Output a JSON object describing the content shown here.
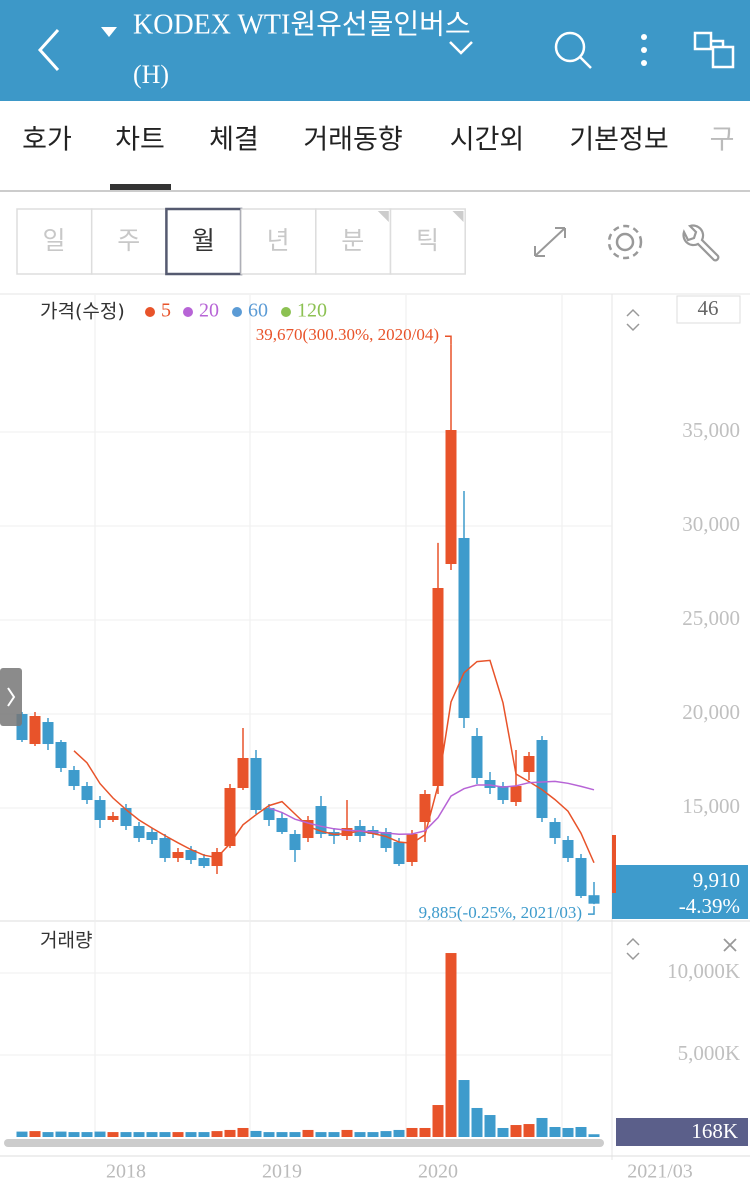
{
  "header": {
    "title": "KODEX WTI원유선물인버스",
    "subtitle": "(H)"
  },
  "tabs": [
    "호가",
    "차트",
    "체결",
    "거래동향",
    "시간외",
    "기본정보",
    "구"
  ],
  "periods": [
    "일",
    "주",
    "월",
    "년",
    "분",
    "틱"
  ],
  "chart_data": [
    {
      "type": "candlestick",
      "label": "가격(수정)",
      "moving_averages": [
        {
          "name": "5",
          "color": "#e8532a"
        },
        {
          "name": "20",
          "color": "#b764d6"
        },
        {
          "name": "60",
          "color": "#5b9bd5"
        },
        {
          "name": "120",
          "color": "#8cc152"
        }
      ],
      "up_color": "#e8532a",
      "down_color": "#3e9bcc",
      "open": [
        20000,
        18404,
        19574,
        18511,
        17021,
        16170,
        15425,
        14362,
        15000,
        14043,
        13723,
        13404,
        12340,
        12766,
        12340,
        11915,
        12979,
        16064,
        17660,
        15000,
        14468,
        13617,
        13404,
        15106,
        13723,
        13511,
        14043,
        13830,
        13723,
        13191,
        12128,
        14255,
        16170,
        27979,
        29362,
        18830,
        16489,
        16170,
        15319,
        16915,
        18617,
        14255,
        13298,
        12340,
        10362
      ],
      "high": [
        20106,
        20106,
        19787,
        18617,
        17234,
        16383,
        15638,
        14787,
        15213,
        14255,
        13936,
        13617,
        12872,
        12979,
        12553,
        12872,
        16277,
        19255,
        18085,
        15213,
        14787,
        13830,
        14574,
        15638,
        13936,
        15425,
        14362,
        14043,
        13936,
        13404,
        13830,
        15957,
        29100,
        39670,
        31862,
        19255,
        16915,
        16383,
        18085,
        17979,
        18830,
        14468,
        13511,
        12553,
        11064
      ],
      "low": [
        18511,
        18298,
        18085,
        16915,
        15957,
        15213,
        13936,
        14255,
        13830,
        13191,
        13085,
        12128,
        12128,
        12021,
        11809,
        11489,
        12872,
        15957,
        14681,
        14043,
        13617,
        12128,
        13191,
        13404,
        13085,
        13298,
        13191,
        13404,
        12660,
        11915,
        11915,
        13191,
        15745,
        27660,
        19255,
        16277,
        15745,
        15213,
        15106,
        16489,
        14255,
        13085,
        12128,
        10213,
        9885
      ],
      "close": [
        18617,
        19894,
        18404,
        17128,
        16170,
        15425,
        14362,
        14574,
        14043,
        13404,
        13298,
        12340,
        12660,
        12234,
        11915,
        12660,
        16064,
        17660,
        14894,
        14362,
        13723,
        12766,
        14362,
        13617,
        13511,
        13936,
        13511,
        13617,
        12872,
        12021,
        13617,
        15745,
        26702,
        35106,
        19787,
        16596,
        16064,
        15425,
        16170,
        17766,
        14468,
        13404,
        12340,
        10319,
        9910
      ],
      "ylim": [
        9043,
        42287
      ],
      "yticks": [
        {
          "value": 15000,
          "label": "15,000"
        },
        {
          "value": 20000,
          "label": "20,000"
        },
        {
          "value": 25000,
          "label": "25,000"
        },
        {
          "value": 30000,
          "label": "30,000"
        },
        {
          "value": 35000,
          "label": "35,000"
        }
      ],
      "annotations": [
        "39,670(300.30%, 2020/04)",
        "9,885(-0.25%, 2021/03)"
      ],
      "current_price": "9,910",
      "current_change": "-4.39%",
      "count": "46"
    },
    {
      "type": "bar",
      "label": "거래량",
      "categories": [
        null,
        null,
        null,
        null,
        null,
        null,
        null,
        null,
        "2018",
        null,
        null,
        null,
        null,
        null,
        null,
        null,
        null,
        null,
        null,
        null,
        "2019",
        null,
        null,
        null,
        null,
        null,
        null,
        null,
        null,
        null,
        null,
        null,
        "2020",
        null,
        null,
        null,
        null,
        null,
        null,
        null,
        null,
        null,
        null,
        null,
        null
      ],
      "values": [
        330,
        360,
        300,
        330,
        300,
        300,
        330,
        300,
        300,
        300,
        300,
        300,
        300,
        300,
        300,
        360,
        430,
        550,
        370,
        300,
        300,
        300,
        430,
        300,
        300,
        430,
        300,
        300,
        360,
        430,
        550,
        550,
        1950,
        11220,
        3475,
        1770,
        1340,
        550,
        730,
        790,
        1160,
        610,
        550,
        610,
        168
      ],
      "ylim": [
        0,
        12930
      ],
      "yticks": [
        {
          "value": 5000,
          "label": "5,000K"
        },
        {
          "value": 10000,
          "label": "10,000K"
        }
      ],
      "current_value": "168K",
      "cursor_date": "2021/03"
    }
  ]
}
